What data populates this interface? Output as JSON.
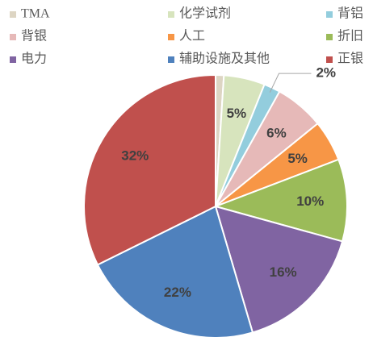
{
  "chart_data": {
    "type": "pie",
    "categories": [
      "TMA",
      "化学试剂",
      "背铝",
      "背银",
      "人工",
      "折旧",
      "电力",
      "辅助设施及其他",
      "正银"
    ],
    "values": [
      1,
      5,
      2,
      6,
      5,
      10,
      16,
      22,
      32
    ],
    "value_labels": [
      null,
      "5%",
      "2%",
      "6%",
      "5%",
      "10%",
      "16%",
      "22%",
      "32%"
    ],
    "colors": [
      "#ddd5c3",
      "#d7e4bd",
      "#93cddd",
      "#e6b9b8",
      "#f79646",
      "#9bbb59",
      "#8064a2",
      "#4f81bd",
      "#c0504d"
    ],
    "legend": "top"
  }
}
